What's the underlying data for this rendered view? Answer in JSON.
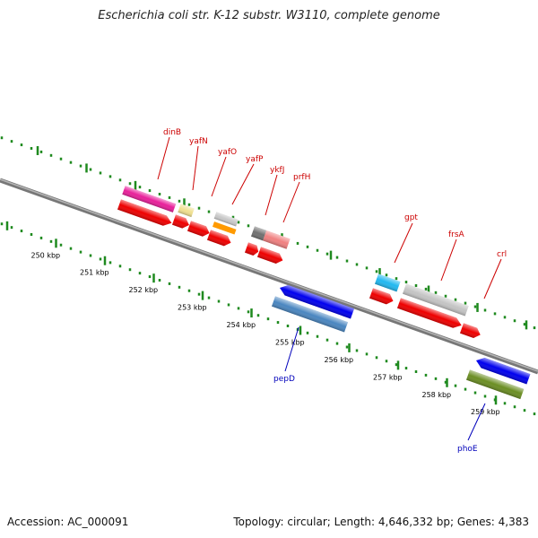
{
  "title": "Escherichia coli str. K-12 substr. W3110, complete genome",
  "accession_label": "Accession: AC_000091",
  "topology_label": "Topology: circular; Length: 4,646,332 bp; Genes: 4,383",
  "colors": {
    "backbone": "#8a8a8a",
    "tick": "#1f8a1f",
    "label_top": "#cc0000",
    "label_bottom": "#0000bb"
  },
  "ticks": [
    {
      "kbp": 250,
      "label": "250 kbp"
    },
    {
      "kbp": 251,
      "label": "251 kbp"
    },
    {
      "kbp": 252,
      "label": "252 kbp"
    },
    {
      "kbp": 253,
      "label": "253 kbp"
    },
    {
      "kbp": 254,
      "label": "254 kbp"
    },
    {
      "kbp": 255,
      "label": "255 kbp"
    },
    {
      "kbp": 256,
      "label": "256 kbp"
    },
    {
      "kbp": 257,
      "label": "257 kbp"
    },
    {
      "kbp": 258,
      "label": "258 kbp"
    },
    {
      "kbp": 259,
      "label": "259 kbp"
    }
  ],
  "gene_labels": [
    {
      "name": "dinB",
      "strand": "top"
    },
    {
      "name": "yafN",
      "strand": "top"
    },
    {
      "name": "yafO",
      "strand": "top"
    },
    {
      "name": "yafP",
      "strand": "top"
    },
    {
      "name": "ykfJ",
      "strand": "top"
    },
    {
      "name": "prfH",
      "strand": "top"
    },
    {
      "name": "gpt",
      "strand": "top"
    },
    {
      "name": "frsA",
      "strand": "top"
    },
    {
      "name": "crl",
      "strand": "top"
    },
    {
      "name": "pepD",
      "strand": "bottom"
    },
    {
      "name": "phoE",
      "strand": "bottom"
    }
  ]
}
